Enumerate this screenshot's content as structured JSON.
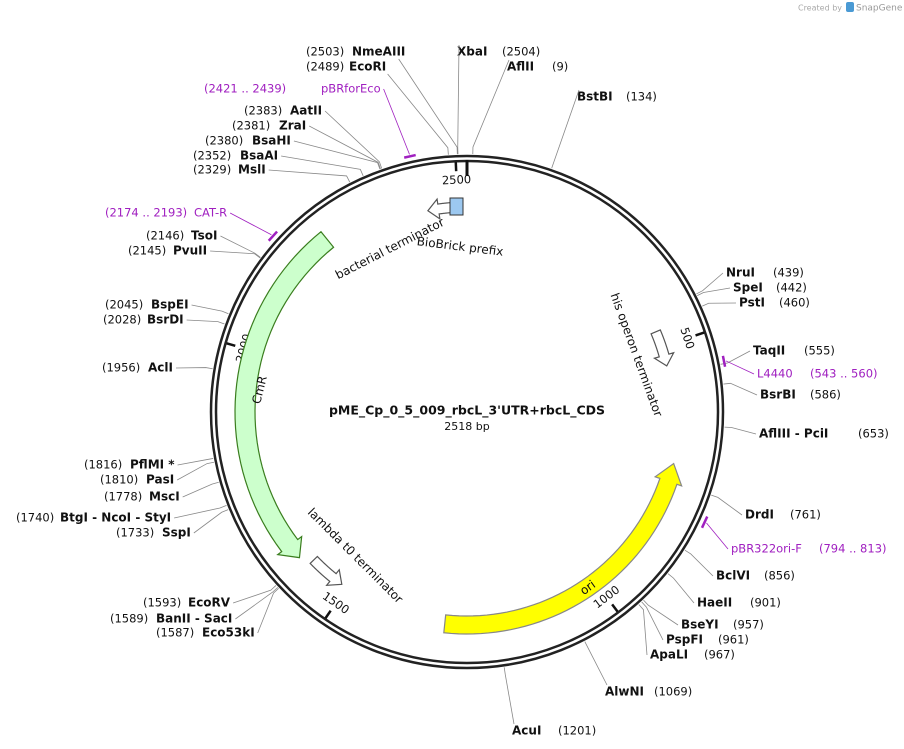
{
  "header": {
    "created_by": "Created by",
    "brand": "SnapGene"
  },
  "map": {
    "name": "pME_Cp_0_5_009_rbcL_3'UTR+rbcL_CDS",
    "length": "2518 bp",
    "ticks": [
      "500",
      "1000",
      "1500",
      "2000",
      "2500"
    ]
  },
  "features": [
    {
      "label": "bacterial terminator"
    },
    {
      "label": "BioBrick prefix"
    },
    {
      "label": "his operon terminator"
    },
    {
      "label": "CmR"
    },
    {
      "label": "lambda t0 terminator"
    },
    {
      "label": "ori"
    }
  ],
  "sites": [
    {
      "pos": "(2503)",
      "name": "NmeAIII"
    },
    {
      "pos": "(2489)",
      "name": "EcoRI"
    },
    {
      "pos": "(2504)",
      "name": "XbaI"
    },
    {
      "pos": "(9)",
      "name": "AflII"
    },
    {
      "pos": "(134)",
      "name": "BstBI"
    },
    {
      "pos": "(2383)",
      "name": "AatII"
    },
    {
      "pos": "(2381)",
      "name": "ZraI"
    },
    {
      "pos": "(2380)",
      "name": "BsaHI"
    },
    {
      "pos": "(2352)",
      "name": "BsaAI"
    },
    {
      "pos": "(2329)",
      "name": "MslI"
    },
    {
      "pos": "(2146)",
      "name": "TsoI"
    },
    {
      "pos": "(2145)",
      "name": "PvuII"
    },
    {
      "pos": "(2045)",
      "name": "BspEI"
    },
    {
      "pos": "(2028)",
      "name": "BsrDI"
    },
    {
      "pos": "(1956)",
      "name": "AclI"
    },
    {
      "pos": "(1816)",
      "name": "PflMI *"
    },
    {
      "pos": "(1810)",
      "name": "PasI"
    },
    {
      "pos": "(1778)",
      "name": "MscI"
    },
    {
      "pos": "(1740)",
      "name": "BtgI - NcoI - StyI"
    },
    {
      "pos": "(1733)",
      "name": "SspI"
    },
    {
      "pos": "(1593)",
      "name": "EcoRV"
    },
    {
      "pos": "(1589)",
      "name": "BanII - SacI"
    },
    {
      "pos": "(1587)",
      "name": "Eco53kI"
    },
    {
      "pos": "(439)",
      "name": "NruI"
    },
    {
      "pos": "(442)",
      "name": "SpeI"
    },
    {
      "pos": "(460)",
      "name": "PstI"
    },
    {
      "pos": "(555)",
      "name": "TaqII"
    },
    {
      "pos": "(586)",
      "name": "BsrBI"
    },
    {
      "pos": "(653)",
      "name": "AflIII - PciI"
    },
    {
      "pos": "(761)",
      "name": "DrdI"
    },
    {
      "pos": "(856)",
      "name": "BclVI"
    },
    {
      "pos": "(901)",
      "name": "HaeII"
    },
    {
      "pos": "(957)",
      "name": "BseYI"
    },
    {
      "pos": "(961)",
      "name": "PspFI"
    },
    {
      "pos": "(967)",
      "name": "ApaLI"
    },
    {
      "pos": "(1069)",
      "name": "AlwNI"
    },
    {
      "pos": "(1201)",
      "name": "AcuI"
    }
  ],
  "primers": [
    {
      "range": "(2421 .. 2439)",
      "name": "pBRforEco"
    },
    {
      "range": "(2174 .. 2193)",
      "name": "CAT-R"
    },
    {
      "range": "(543 .. 560)",
      "name": "L4440"
    },
    {
      "range": "(794 .. 813)",
      "name": "pBR322ori-F"
    }
  ]
}
